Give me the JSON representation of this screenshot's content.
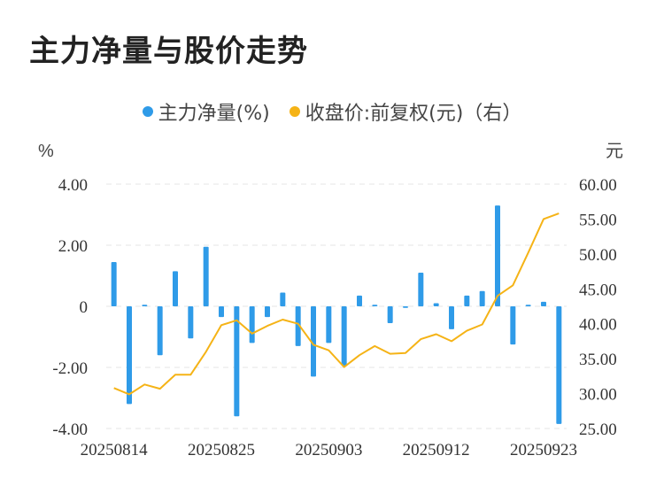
{
  "title": "主力净量与股价走势",
  "legend": [
    {
      "label": "主力净量(%)",
      "color": "#2f9be8"
    },
    {
      "label": "收盘价:前复权(元)（右）",
      "color": "#f5b316"
    }
  ],
  "chart_data": {
    "type": "bar+line",
    "left_unit": "%",
    "right_unit": "元",
    "left_ylim": [
      -4,
      4
    ],
    "right_ylim": [
      25,
      60
    ],
    "left_ticks": [
      "4.00",
      "2.00",
      "0",
      "-2.00",
      "-4.00"
    ],
    "right_ticks": [
      "60.00",
      "55.00",
      "50.00",
      "45.00",
      "40.00",
      "35.00",
      "30.00",
      "25.00"
    ],
    "x_tick_labels": [
      "20250814",
      "20250825",
      "20250903",
      "20250912",
      "20250923"
    ],
    "grid": true,
    "series": [
      {
        "name": "主力净量(%)",
        "type": "bar",
        "axis": "left",
        "color": "#2f9be8",
        "values": [
          1.45,
          -3.2,
          0.05,
          -1.6,
          1.15,
          -1.05,
          1.95,
          -0.35,
          -3.6,
          -1.2,
          -0.35,
          0.45,
          -1.3,
          -2.3,
          -1.2,
          -1.95,
          0.35,
          0.05,
          -0.55,
          -0.05,
          1.1,
          0.1,
          -0.75,
          0.35,
          0.5,
          3.3,
          -1.25,
          0.05,
          0.15,
          -3.85
        ]
      },
      {
        "name": "收盘价:前复权(元)（右）",
        "type": "line",
        "axis": "right",
        "color": "#f5b316",
        "values": [
          30.8,
          29.9,
          31.3,
          30.7,
          32.7,
          32.7,
          36.0,
          39.8,
          40.5,
          38.6,
          39.7,
          40.6,
          40.0,
          37.0,
          36.2,
          33.8,
          35.5,
          36.8,
          35.7,
          35.8,
          37.8,
          38.5,
          37.5,
          39.0,
          39.9,
          44.0,
          45.5,
          50.2,
          55.0,
          55.8
        ]
      }
    ]
  }
}
